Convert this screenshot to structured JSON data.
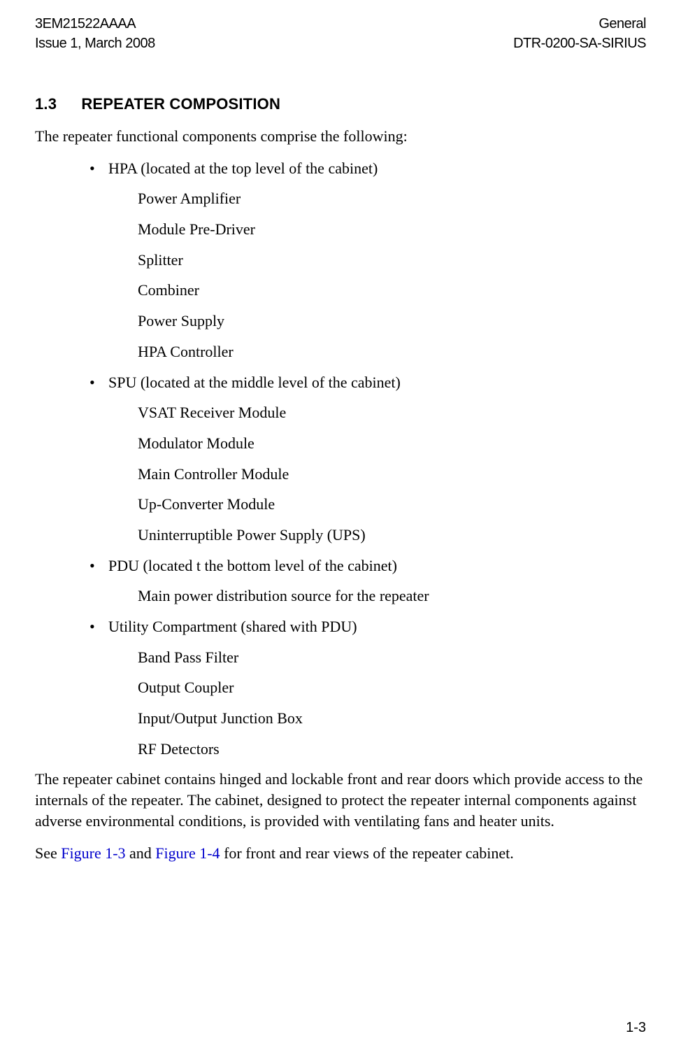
{
  "header": {
    "left_line1": "3EM21522AAAA",
    "left_line2": "Issue 1, March 2008",
    "right_line1": "General",
    "right_line2": "DTR-0200-SA-SIRIUS"
  },
  "section": {
    "number": "1.3",
    "title": "REPEATER COMPOSITION"
  },
  "intro": "The repeater functional components comprise the following:",
  "bullets": [
    {
      "label": "HPA (located at the top level of the cabinet)",
      "subs": [
        "Power Amplifier",
        "Module Pre-Driver",
        "Splitter",
        "Combiner",
        "Power Supply",
        "HPA Controller"
      ]
    },
    {
      "label": "SPU (located at the middle level of the cabinet)",
      "subs": [
        "VSAT Receiver Module",
        "Modulator Module",
        "Main Controller Module",
        "Up-Converter Module",
        "Uninterruptible Power Supply (UPS)"
      ]
    },
    {
      "label": "PDU (located t the bottom level of the cabinet)",
      "subs": [
        "Main power distribution source for the repeater"
      ]
    },
    {
      "label": "Utility Compartment (shared with PDU)",
      "subs": [
        "Band Pass Filter",
        "Output Coupler",
        "Input/Output Junction Box",
        "RF Detectors"
      ]
    }
  ],
  "paragraph1": "The repeater cabinet contains hinged and lockable front and rear doors which provide access to the internals of the repeater. The cabinet, designed to protect the repeater internal components against adverse environmental conditions, is provided with ventilating fans and heater units.",
  "paragraph2_pre": "See ",
  "figure_ref1": "Figure 1-3",
  "paragraph2_mid": " and ",
  "figure_ref2": "Figure 1-4",
  "paragraph2_post": " for front and rear views of the repeater cabinet.",
  "page_number": "1-3",
  "colors": {
    "link": "#0000cc",
    "text": "#000000",
    "background": "#ffffff"
  }
}
